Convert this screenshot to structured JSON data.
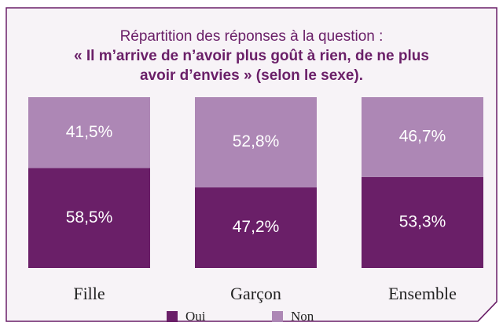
{
  "chart_data": {
    "type": "stacked_bar",
    "title": "Répartition des réponses à la question :",
    "subtitle": "« Il m’arrive de n’avoir plus goût à rien, de ne plus avoir d’envies » (selon le sexe).",
    "categories": [
      "Fille",
      "Garçon",
      "Ensemble"
    ],
    "series": [
      {
        "name": "Oui",
        "color": "#6a1f68",
        "values": [
          58.5,
          47.2,
          53.3
        ],
        "value_labels": [
          "58,5%",
          "47,2%",
          "53,3%"
        ]
      },
      {
        "name": "Non",
        "color": "#ad87b5",
        "values": [
          41.5,
          52.8,
          46.7
        ],
        "value_labels": [
          "41,5%",
          "52,8%",
          "46,7%"
        ]
      }
    ]
  }
}
